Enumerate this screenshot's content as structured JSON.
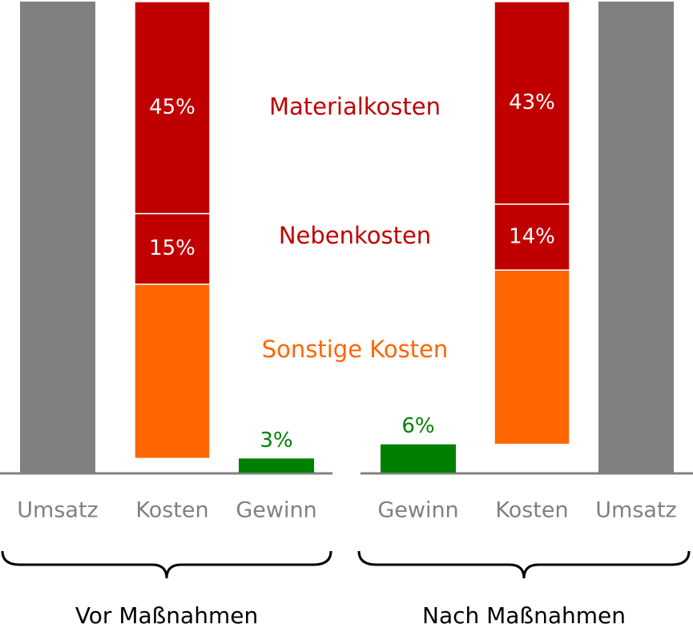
{
  "chart_data": [
    {
      "type": "waterfall",
      "label": "Vor Maßnahmen",
      "ylim": [
        0,
        100
      ],
      "categories": [
        "Umsatz",
        "Kosten",
        "Gewinn"
      ],
      "values": [
        100,
        null,
        3
      ],
      "value_labels": [
        null,
        null,
        "3%"
      ],
      "colors": [
        "#808080",
        null,
        "#008000"
      ],
      "series": [
        {
          "name": "Sonstige Kosten",
          "color": "#ff6600",
          "values": [
            null,
            37,
            null
          ]
        },
        {
          "name": "Nebenkosten",
          "color": "#c00000",
          "values": [
            null,
            15,
            null
          ],
          "value_labels": [
            null,
            "15%",
            null
          ]
        },
        {
          "name": "Materialkosten",
          "color": "#c00000",
          "values": [
            null,
            45,
            null
          ],
          "value_labels": [
            null,
            "45%",
            null
          ]
        }
      ]
    },
    {
      "type": "waterfall",
      "label": "Nach Maßnahmen",
      "ylim": [
        0,
        100
      ],
      "categories": [
        "Gewinn",
        "Kosten",
        "Umsatz"
      ],
      "values": [
        6,
        null,
        100
      ],
      "value_labels": [
        "6%",
        null,
        null
      ],
      "colors": [
        "#008000",
        null,
        "#808080"
      ],
      "series": [
        {
          "color": "#ff6600",
          "values": [
            null,
            37,
            null
          ]
        },
        {
          "color": "#c00000",
          "values": [
            null,
            14,
            null
          ],
          "value_labels": [
            null,
            "14%",
            null
          ]
        },
        {
          "color": "#c00000",
          "values": [
            null,
            43,
            null
          ],
          "value_labels": [
            null,
            "43%",
            null
          ]
        }
      ]
    }
  ]
}
